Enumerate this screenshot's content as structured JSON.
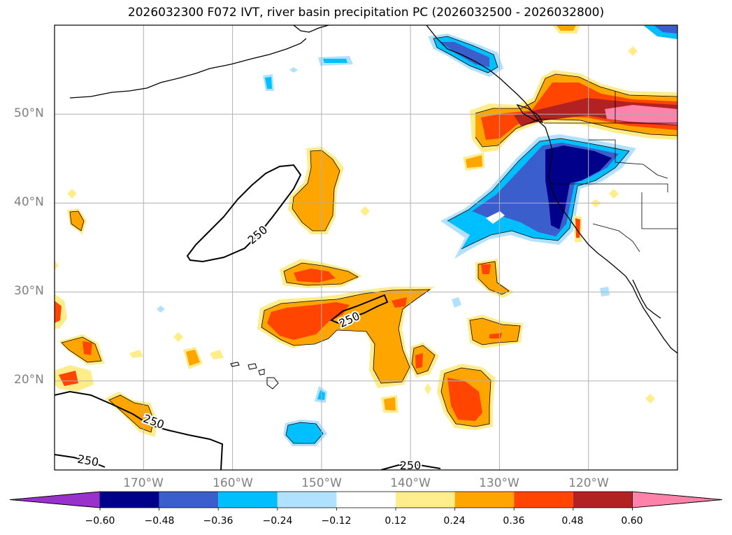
{
  "title": "2026032300 F072 IVT, river basin precipitation PC (2026032500 - 2026032800)",
  "map": {
    "projection": "PlateCarree",
    "lon_range": [
      -180,
      -110
    ],
    "lat_range": [
      10,
      60
    ],
    "lat_ticks": [
      "50°N",
      "40°N",
      "30°N",
      "20°N"
    ],
    "lon_ticks": [
      "170°W",
      "160°W",
      "150°W",
      "140°W",
      "130°W",
      "120°W"
    ],
    "contour_label": "250",
    "grid": true
  },
  "colorbar": {
    "orientation": "horizontal",
    "extend": "both",
    "colors": [
      "#9932CC",
      "#00008B",
      "#3A5FCD",
      "#00BFFF",
      "#B0E2FF",
      "#FFFFFF",
      "#FFEC8B",
      "#FFA500",
      "#FF4500",
      "#B22222",
      "#FF82AB"
    ],
    "tick_labels": [
      "−0.60",
      "−0.48",
      "−0.36",
      "−0.24",
      "−0.12",
      "0.12",
      "0.24",
      "0.36",
      "0.48",
      "0.60"
    ]
  }
}
